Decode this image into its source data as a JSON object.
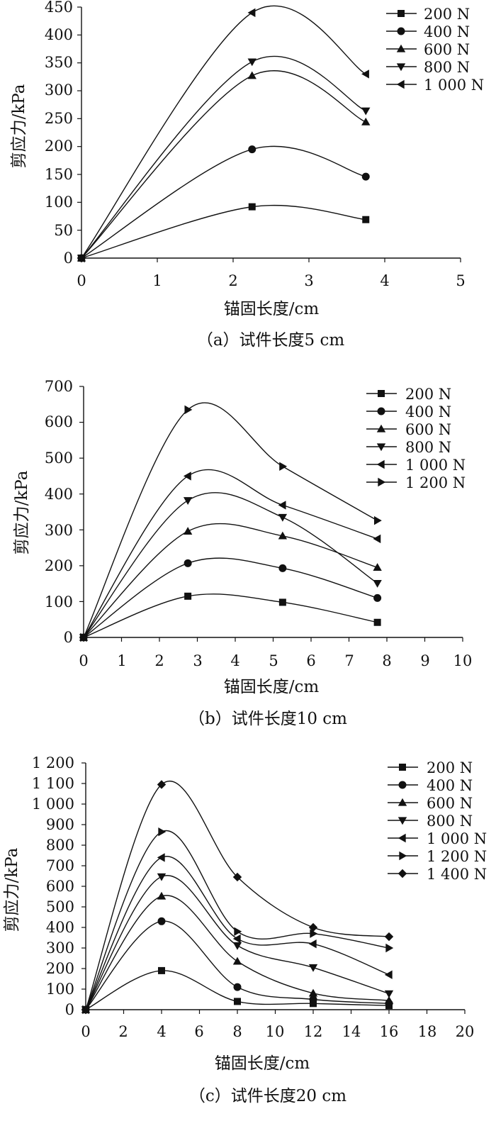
{
  "figure": {
    "charts": [
      {
        "id": "a",
        "caption": "（a）试件长度5 cm",
        "chart_data": {
          "type": "line",
          "title": "",
          "xlabel": "锚固长度/cm",
          "ylabel": "剪应力/kPa",
          "xlim": [
            0,
            5
          ],
          "ylim": [
            0,
            450
          ],
          "xticks": [
            0,
            1,
            2,
            3,
            4,
            5
          ],
          "xtick_labels": [
            "0",
            "1",
            "2",
            "3",
            "4",
            "5"
          ],
          "yticks": [
            0,
            50,
            100,
            150,
            200,
            250,
            300,
            350,
            400,
            450
          ],
          "ytick_labels": [
            "0",
            "50",
            "100",
            "150",
            "200",
            "250",
            "300",
            "350",
            "400",
            "450"
          ],
          "grid": false,
          "legend_position": "top-right",
          "x": [
            0,
            2.25,
            3.75
          ],
          "series": [
            {
              "name": "200 N",
              "marker": "square",
              "values": [
                0,
                92,
                69
              ]
            },
            {
              "name": "400 N",
              "marker": "circle",
              "values": [
                0,
                195,
                146
              ]
            },
            {
              "name": "600 N",
              "marker": "triangle-up",
              "values": [
                0,
                327,
                244
              ]
            },
            {
              "name": "800 N",
              "marker": "triangle-down",
              "values": [
                0,
                352,
                264
              ]
            },
            {
              "name": "1 000 N",
              "marker": "triangle-left",
              "values": [
                0,
                440,
                330
              ]
            }
          ]
        }
      },
      {
        "id": "b",
        "caption": "（b）试件长度10 cm",
        "chart_data": {
          "type": "line",
          "title": "",
          "xlabel": "锚固长度/cm",
          "ylabel": "剪应力/kPa",
          "xlim": [
            0,
            10
          ],
          "ylim": [
            0,
            700
          ],
          "xticks": [
            0,
            1,
            2,
            3,
            4,
            5,
            6,
            7,
            8,
            9,
            10
          ],
          "xtick_labels": [
            "0",
            "1",
            "2",
            "3",
            "4",
            "5",
            "6",
            "7",
            "8",
            "9",
            "10"
          ],
          "yticks": [
            0,
            100,
            200,
            300,
            400,
            500,
            600,
            700
          ],
          "ytick_labels": [
            "0",
            "100",
            "200",
            "300",
            "400",
            "500",
            "600",
            "700"
          ],
          "grid": false,
          "legend_position": "top-right",
          "x": [
            0,
            2.75,
            5.25,
            7.75
          ],
          "series": [
            {
              "name": "200 N",
              "marker": "square",
              "values": [
                0,
                115,
                98,
                42
              ]
            },
            {
              "name": "400 N",
              "marker": "circle",
              "values": [
                0,
                207,
                193,
                110
              ]
            },
            {
              "name": "600 N",
              "marker": "triangle-up",
              "values": [
                0,
                296,
                283,
                195
              ]
            },
            {
              "name": "800 N",
              "marker": "triangle-down",
              "values": [
                0,
                382,
                335,
                151
              ]
            },
            {
              "name": "1 000 N",
              "marker": "triangle-left",
              "values": [
                0,
                450,
                369,
                275
              ]
            },
            {
              "name": "1 200 N",
              "marker": "triangle-right",
              "values": [
                0,
                635,
                477,
                326
              ]
            }
          ]
        }
      },
      {
        "id": "c",
        "caption": "（c）试件长度20 cm",
        "chart_data": {
          "type": "line",
          "title": "",
          "xlabel": "锚固长度/cm",
          "ylabel": "剪应力/kPa",
          "xlim": [
            0,
            20
          ],
          "ylim": [
            0,
            1200
          ],
          "xticks": [
            0,
            2,
            4,
            6,
            8,
            10,
            12,
            14,
            16,
            18,
            20
          ],
          "xtick_labels": [
            "0",
            "2",
            "4",
            "6",
            "8",
            "10",
            "12",
            "14",
            "16",
            "18",
            "20"
          ],
          "yticks": [
            0,
            100,
            200,
            300,
            400,
            500,
            600,
            700,
            800,
            900,
            1000,
            1100,
            1200
          ],
          "ytick_labels": [
            "0",
            "100",
            "200",
            "300",
            "400",
            "500",
            "600",
            "700",
            "800",
            "900",
            "1 000",
            "1 100",
            "1 200"
          ],
          "grid": false,
          "legend_position": "top-right",
          "x": [
            0,
            4,
            8,
            12,
            16
          ],
          "series": [
            {
              "name": "200 N",
              "marker": "square",
              "values": [
                0,
                190,
                40,
                30,
                20
              ]
            },
            {
              "name": "400 N",
              "marker": "circle",
              "values": [
                0,
                430,
                110,
                50,
                30
              ]
            },
            {
              "name": "600 N",
              "marker": "triangle-up",
              "values": [
                0,
                552,
                235,
                80,
                45
              ]
            },
            {
              "name": "800 N",
              "marker": "triangle-down",
              "values": [
                0,
                647,
                312,
                205,
                78
              ]
            },
            {
              "name": "1 000 N",
              "marker": "triangle-left",
              "values": [
                0,
                740,
                345,
                320,
                170
              ]
            },
            {
              "name": "1 200 N",
              "marker": "triangle-right",
              "values": [
                0,
                865,
                380,
                370,
                300
              ]
            },
            {
              "name": "1 400 N",
              "marker": "diamond",
              "values": [
                0,
                1095,
                645,
                400,
                355
              ]
            }
          ]
        }
      }
    ]
  }
}
